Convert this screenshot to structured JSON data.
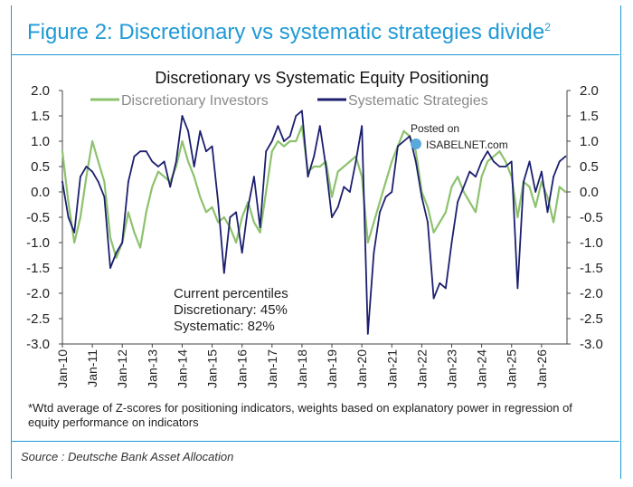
{
  "figure_title": "Figure 2: Discretionary vs systematic strategies divide",
  "figure_title_sup": "2",
  "watermark": {
    "posted": "Posted on",
    "brand": "ISABELNET.com"
  },
  "footnote": "*Wtd average of Z-scores for positioning indicators, weights based on explanatory power in regression of equity performance on indicators",
  "source": "Source : Deutsche Bank Asset Allocation",
  "annotation": {
    "line1": "Current percentiles",
    "line2": "Discretionary: 45%",
    "line3": "Systematic: 82%"
  },
  "colors": {
    "accent": "#1f9ad6",
    "discretionary": "#8dc26e",
    "systematic": "#1c1f6e",
    "text": "#222222"
  },
  "chart_data": {
    "type": "line",
    "title": "Discretionary  vs Systematic Equity Positioning",
    "xlabel": "",
    "ylabel": "",
    "ylim": [
      -3.0,
      2.0
    ],
    "y_ticks": [
      "2.0",
      "1.5",
      "1.0",
      "0.5",
      "0.0",
      "-0.5",
      "-1.0",
      "-1.5",
      "-2.0",
      "-2.5",
      "-3.0"
    ],
    "x_ticks": [
      "Jan-10",
      "Jan-11",
      "Jan-12",
      "Jan-13",
      "Jan-14",
      "Jan-15",
      "Jan-16",
      "Jan-17",
      "Jan-18",
      "Jan-19",
      "Jan-20",
      "Jan-21",
      "Jan-22",
      "Jan-23",
      "Jan-24",
      "Jan-25",
      "Jan-26"
    ],
    "xlim": [
      2010.0,
      2026.85
    ],
    "grid": false,
    "legend_position": "top",
    "series": [
      {
        "name": "Discretionary Investors",
        "color": "#8dc26e",
        "x": [
          2010.0,
          2010.2,
          2010.4,
          2010.6,
          2010.8,
          2011.0,
          2011.2,
          2011.4,
          2011.6,
          2011.8,
          2012.0,
          2012.2,
          2012.4,
          2012.6,
          2012.8,
          2013.0,
          2013.2,
          2013.4,
          2013.6,
          2013.8,
          2014.0,
          2014.2,
          2014.4,
          2014.6,
          2014.8,
          2015.0,
          2015.2,
          2015.4,
          2015.6,
          2015.8,
          2016.0,
          2016.2,
          2016.4,
          2016.6,
          2016.8,
          2017.0,
          2017.2,
          2017.4,
          2017.6,
          2017.8,
          2018.0,
          2018.2,
          2018.4,
          2018.6,
          2018.8,
          2019.0,
          2019.2,
          2019.4,
          2019.6,
          2019.8,
          2020.0,
          2020.2,
          2020.4,
          2020.6,
          2020.8,
          2021.0,
          2021.2,
          2021.4,
          2021.6,
          2021.8,
          2022.0,
          2022.2,
          2022.4,
          2022.6,
          2022.8,
          2023.0,
          2023.2,
          2023.4,
          2023.6,
          2023.8,
          2024.0,
          2024.2,
          2024.4,
          2024.6,
          2024.8,
          2025.0,
          2025.2,
          2025.4,
          2025.6,
          2025.8,
          2026.0,
          2026.2,
          2026.4,
          2026.6,
          2026.8
        ],
        "values": [
          0.8,
          -0.2,
          -1.0,
          -0.5,
          0.3,
          1.0,
          0.6,
          0.2,
          -0.9,
          -1.3,
          -1.0,
          -0.4,
          -0.8,
          -1.1,
          -0.4,
          0.1,
          0.4,
          0.3,
          0.2,
          0.5,
          1.0,
          0.6,
          0.3,
          -0.1,
          -0.4,
          -0.3,
          -0.6,
          -0.5,
          -0.7,
          -1.0,
          -0.5,
          -0.2,
          -0.6,
          -0.8,
          0.0,
          0.8,
          1.0,
          0.9,
          1.0,
          1.0,
          1.3,
          0.4,
          0.5,
          0.5,
          0.6,
          -0.1,
          0.4,
          0.5,
          0.6,
          0.7,
          0.3,
          -1.0,
          -0.6,
          -0.2,
          0.2,
          0.6,
          0.9,
          1.2,
          1.1,
          0.8,
          0.0,
          -0.3,
          -0.8,
          -0.6,
          -0.4,
          0.1,
          0.3,
          0.0,
          -0.2,
          -0.4,
          0.3,
          0.6,
          0.7,
          0.8,
          0.6,
          0.3,
          -0.5,
          0.2,
          0.1,
          -0.3,
          0.2,
          -0.1,
          -0.6,
          0.1,
          0.0
        ]
      },
      {
        "name": "Systematic Strategies",
        "color": "#1c1f6e",
        "x": [
          2010.0,
          2010.2,
          2010.4,
          2010.6,
          2010.8,
          2011.0,
          2011.2,
          2011.4,
          2011.6,
          2011.8,
          2012.0,
          2012.2,
          2012.4,
          2012.6,
          2012.8,
          2013.0,
          2013.2,
          2013.4,
          2013.6,
          2013.8,
          2014.0,
          2014.2,
          2014.4,
          2014.6,
          2014.8,
          2015.0,
          2015.2,
          2015.4,
          2015.6,
          2015.8,
          2016.0,
          2016.2,
          2016.4,
          2016.6,
          2016.8,
          2017.0,
          2017.2,
          2017.4,
          2017.6,
          2017.8,
          2018.0,
          2018.2,
          2018.4,
          2018.6,
          2018.8,
          2019.0,
          2019.2,
          2019.4,
          2019.6,
          2019.8,
          2020.0,
          2020.2,
          2020.4,
          2020.6,
          2020.8,
          2021.0,
          2021.2,
          2021.4,
          2021.6,
          2021.8,
          2022.0,
          2022.2,
          2022.4,
          2022.6,
          2022.8,
          2023.0,
          2023.2,
          2023.4,
          2023.6,
          2023.8,
          2024.0,
          2024.2,
          2024.4,
          2024.6,
          2024.8,
          2025.0,
          2025.2,
          2025.4,
          2025.6,
          2025.8,
          2026.0,
          2026.2,
          2026.4,
          2026.6,
          2026.8
        ],
        "values": [
          0.2,
          -0.5,
          -0.8,
          0.3,
          0.5,
          0.4,
          0.2,
          -0.1,
          -1.5,
          -1.2,
          -1.0,
          0.2,
          0.7,
          0.8,
          0.8,
          0.6,
          0.5,
          0.6,
          0.1,
          0.6,
          1.5,
          1.2,
          0.5,
          1.2,
          0.8,
          0.9,
          -0.2,
          -1.6,
          -0.5,
          -0.4,
          -1.2,
          -0.3,
          0.3,
          -0.7,
          0.8,
          1.0,
          1.3,
          1.0,
          1.1,
          1.5,
          1.6,
          0.3,
          0.7,
          1.3,
          0.5,
          -0.5,
          -0.3,
          0.1,
          0.0,
          0.6,
          1.3,
          -2.8,
          -1.2,
          -0.4,
          -0.1,
          0.0,
          0.9,
          1.0,
          1.1,
          0.6,
          -0.1,
          -0.6,
          -2.1,
          -1.8,
          -1.9,
          -1.0,
          -0.2,
          0.1,
          0.4,
          0.3,
          0.6,
          0.8,
          0.6,
          0.5,
          0.5,
          0.6,
          -1.9,
          0.2,
          0.6,
          0.0,
          0.4,
          -0.4,
          0.3,
          0.6,
          0.7
        ]
      }
    ]
  }
}
